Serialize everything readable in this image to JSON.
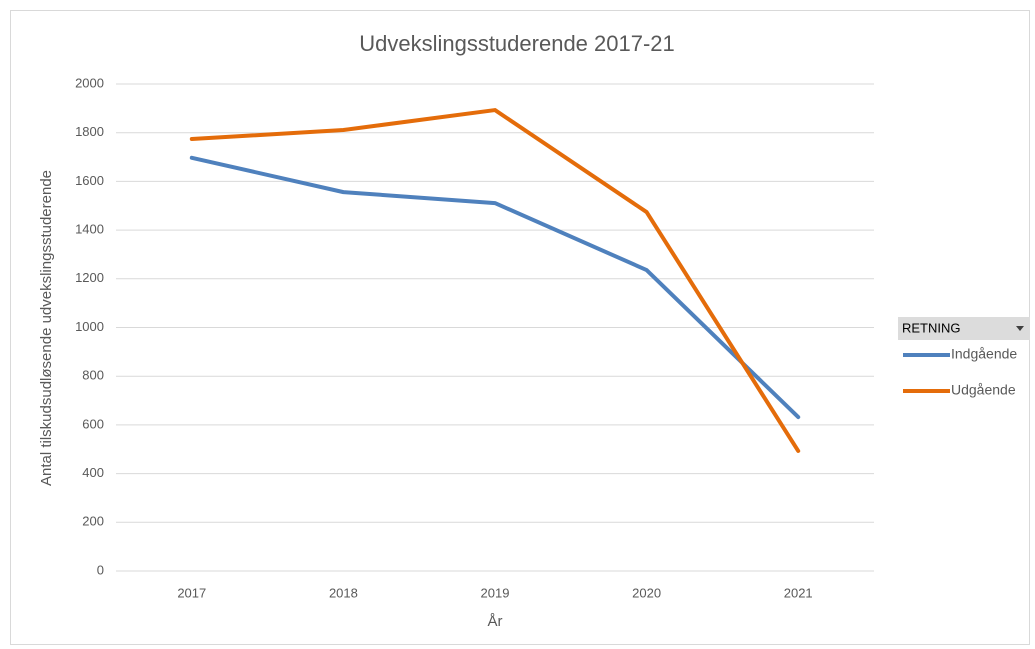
{
  "chart_data": {
    "type": "line",
    "title": "Udvekslingsstuderende 2017-21",
    "x_label": "År",
    "y_label": "Antal tilskudsudløsende udvekslingsstuderende",
    "categories": [
      "2017",
      "2018",
      "2019",
      "2020",
      "2021"
    ],
    "series": [
      {
        "name": "Indgående",
        "color": "#4f81bd",
        "values": [
          1697,
          1556,
          1511,
          1236,
          632
        ]
      },
      {
        "name": "Udgående",
        "color": "#e46c0a",
        "values": [
          1774,
          1811,
          1893,
          1474,
          493
        ]
      }
    ],
    "ylim": [
      0,
      2000
    ],
    "yticks": [
      0,
      200,
      400,
      600,
      800,
      1000,
      1200,
      1400,
      1600,
      1800,
      2000
    ],
    "grid": true,
    "legend_title": "RETNING",
    "legend_position": "right"
  }
}
